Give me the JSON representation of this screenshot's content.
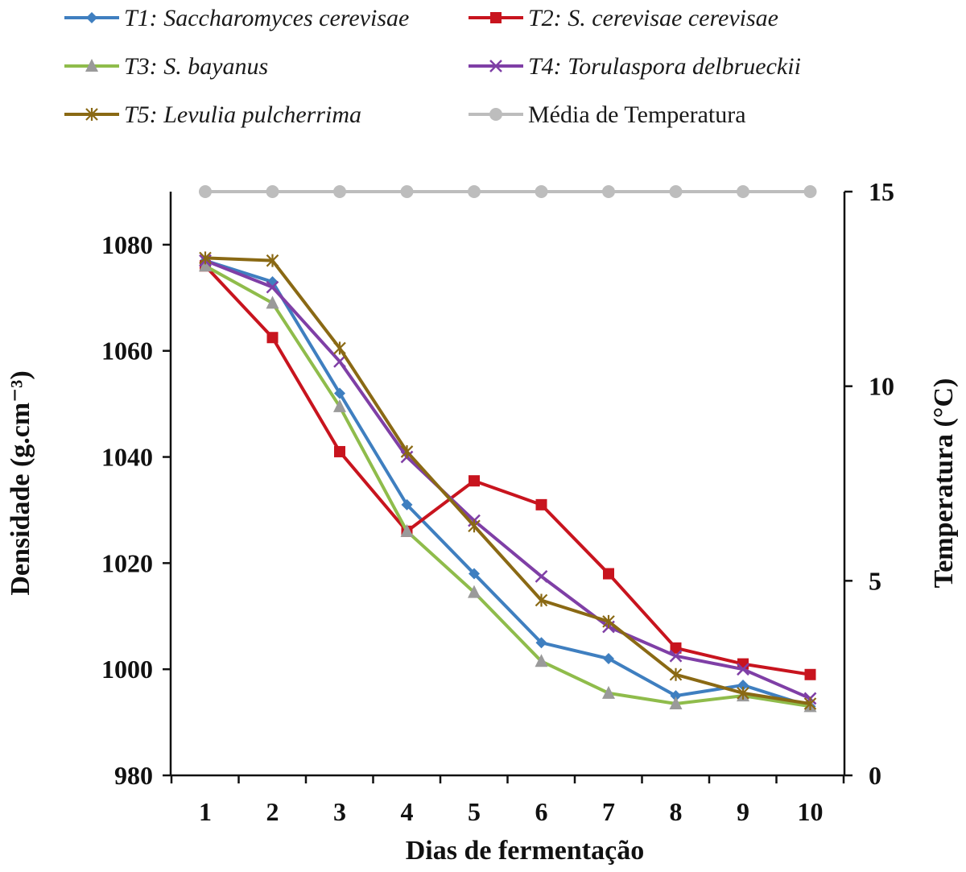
{
  "chart_data": {
    "type": "line",
    "x": [
      1,
      2,
      3,
      4,
      5,
      6,
      7,
      8,
      9,
      10
    ],
    "xlabel": "Dias de fermentação",
    "ylabel": "Densidade (g.cm⁻³)",
    "y2label": "Temperatura (°C)",
    "ylim": [
      980,
      1090
    ],
    "y_ticks": [
      980,
      1000,
      1020,
      1040,
      1060,
      1080
    ],
    "y2lim": [
      0,
      15
    ],
    "y2_ticks": [
      0,
      5,
      10,
      15
    ],
    "grid": false,
    "legend_position": "top",
    "series": [
      {
        "name_prefix": "T1: ",
        "name_species": "Saccharomyces cerevisae",
        "axis": "left",
        "color": "#3f7fc0",
        "marker": "diamond",
        "values": [
          1077,
          1073,
          1052,
          1031,
          1018,
          1005,
          1002,
          995,
          997,
          993
        ]
      },
      {
        "name_prefix": "T2: ",
        "name_species": "S. cerevisae cerevisae",
        "axis": "left",
        "color": "#c8141e",
        "marker": "square",
        "values": [
          1076,
          1062.5,
          1041,
          1026,
          1035.5,
          1031,
          1018,
          1004,
          1001,
          999
        ]
      },
      {
        "name_prefix": "T3: ",
        "name_species": "S. bayanus",
        "axis": "left",
        "color": "#8fbc4b",
        "marker": "triangle",
        "values": [
          1076,
          1069,
          1049.5,
          1026,
          1014.5,
          1001.5,
          995.5,
          993.5,
          995,
          993
        ]
      },
      {
        "name_prefix": "T4: ",
        "name_species": "Torulaspora delbrueckii",
        "axis": "left",
        "color": "#7f3fa6",
        "marker": "x",
        "values": [
          1077,
          1072,
          1058,
          1040,
          1028,
          1017.5,
          1008,
          1002.5,
          1000,
          994.5
        ]
      },
      {
        "name_prefix": "T5: ",
        "name_species": "Levulia pulcherrima",
        "axis": "left",
        "color": "#8a6914",
        "marker": "star",
        "values": [
          1077.5,
          1077,
          1060.5,
          1041,
          1027,
          1013,
          1009,
          999,
          995.5,
          993.5
        ]
      },
      {
        "name_prefix": "",
        "name_species": "Média de Temperatura",
        "axis": "right",
        "color": "#bdbdbd",
        "marker": "circle",
        "values": [
          15,
          15,
          15,
          15,
          15,
          15,
          15,
          15,
          15,
          15
        ]
      }
    ]
  }
}
